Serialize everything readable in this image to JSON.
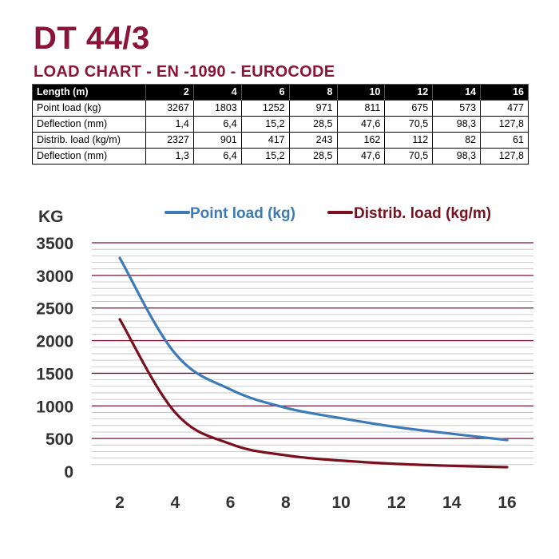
{
  "title": "DT 44/3",
  "subtitle": "LOAD CHART - EN -1090 - EUROCODE",
  "table": {
    "header": [
      "Length (m)",
      "2",
      "4",
      "6",
      "8",
      "10",
      "12",
      "14",
      "16"
    ],
    "rows": [
      [
        "Point load (kg)",
        "3267",
        "1803",
        "1252",
        "971",
        "811",
        "675",
        "573",
        "477"
      ],
      [
        "Deflection (mm)",
        "1,4",
        "6,4",
        "15,2",
        "28,5",
        "47,6",
        "70,5",
        "98,3",
        "127,8"
      ],
      [
        "Distrib. load (kg/m)",
        "2327",
        "901",
        "417",
        "243",
        "162",
        "112",
        "82",
        "61"
      ],
      [
        "Deflection (mm)",
        "1,3",
        "6,4",
        "15,2",
        "28,5",
        "47,6",
        "70,5",
        "98,3",
        "127,8"
      ]
    ]
  },
  "chart_data": {
    "type": "line",
    "ylabel": "KG",
    "xlabel": "",
    "x": [
      2,
      4,
      6,
      8,
      10,
      12,
      14,
      16
    ],
    "xticks": [
      "2",
      "4",
      "6",
      "8",
      "10",
      "12",
      "14",
      "16"
    ],
    "yticks": [
      "0",
      "500",
      "1000",
      "1500",
      "2000",
      "2500",
      "3000",
      "3500"
    ],
    "ylim": [
      0,
      3500
    ],
    "xlim": [
      2,
      16
    ],
    "grid": true,
    "legend": "top",
    "series": [
      {
        "name": "Point load (kg)",
        "color": "#3d7ab8",
        "values": [
          3267,
          1803,
          1252,
          971,
          811,
          675,
          573,
          477
        ]
      },
      {
        "name": "Distrib. load (kg/m)",
        "color": "#7a0f1e",
        "values": [
          2327,
          901,
          417,
          243,
          162,
          112,
          82,
          61
        ]
      }
    ]
  },
  "colors": {
    "brand": "#8b1538",
    "major_grid": "#7a1030",
    "minor_grid": "#bdbdbd"
  }
}
